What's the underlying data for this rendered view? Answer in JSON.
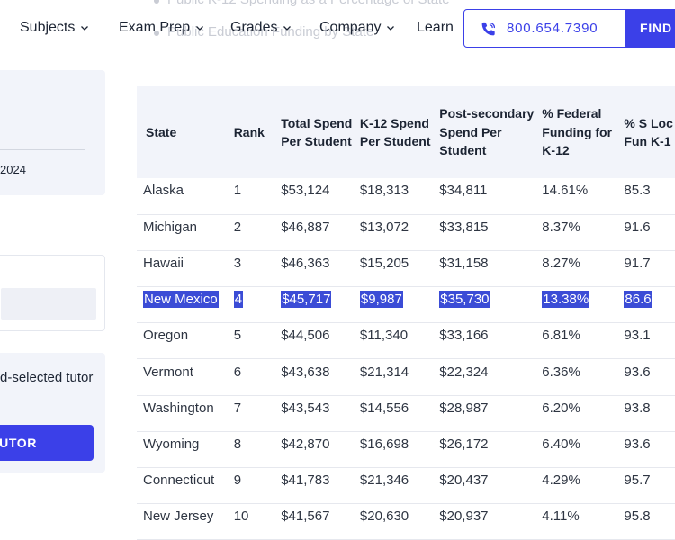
{
  "background_bullets": [
    "Public K-12 Spending as a Percentage of State",
    "Public Education Funding by State"
  ],
  "nav": {
    "items": [
      "Subjects",
      "Exam Prep",
      "Grades",
      "Company",
      "Learn"
    ],
    "phone": "800.654.7390",
    "find_label": "FIND"
  },
  "sidebar": {
    "date_fragment": "2024",
    "tutor_text": "d-selected tutor",
    "tutor_button": "TUTOR"
  },
  "table": {
    "headers": [
      "State",
      "Rank",
      "Total Spend Per Student",
      "K-12 Spend Per Student",
      "Post-secondary Spend Per Student",
      "% Federal Funding for K-12",
      "% S Loc Fun K-1"
    ],
    "highlighted_row": 3,
    "rows": [
      [
        "Alaska",
        "1",
        "$53,124",
        "$18,313",
        "$34,811",
        "14.61%",
        "85.3"
      ],
      [
        "Michigan",
        "2",
        "$46,887",
        "$13,072",
        "$33,815",
        "8.37%",
        "91.6"
      ],
      [
        "Hawaii",
        "3",
        "$46,363",
        "$15,205",
        "$31,158",
        "8.27%",
        "91.7"
      ],
      [
        "New Mexico",
        "4",
        "$45,717",
        "$9,987",
        "$35,730",
        "13.38%",
        "86.6"
      ],
      [
        "Oregon",
        "5",
        "$44,506",
        "$11,340",
        "$33,166",
        "6.81%",
        "93.1"
      ],
      [
        "Vermont",
        "6",
        "$43,638",
        "$21,314",
        "$22,324",
        "6.36%",
        "93.6"
      ],
      [
        "Washington",
        "7",
        "$43,543",
        "$14,556",
        "$28,987",
        "6.20%",
        "93.8"
      ],
      [
        "Wyoming",
        "8",
        "$42,870",
        "$16,698",
        "$26,172",
        "6.40%",
        "93.6"
      ],
      [
        "Connecticut",
        "9",
        "$41,783",
        "$21,346",
        "$20,437",
        "4.29%",
        "95.7"
      ],
      [
        "New Jersey",
        "10",
        "$41,567",
        "$20,630",
        "$20,937",
        "4.11%",
        "95.8"
      ]
    ]
  },
  "colors": {
    "accent": "#3b40e8",
    "selection": "#3b4cd6",
    "panel": "#f2f4fa"
  }
}
